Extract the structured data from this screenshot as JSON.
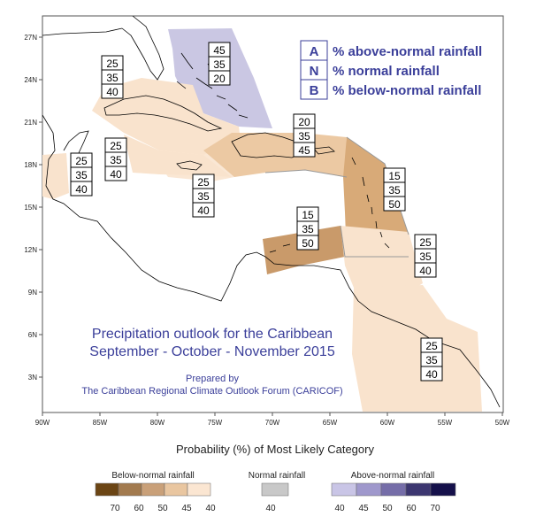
{
  "map": {
    "lon_ticks": [
      "90W",
      "85W",
      "80W",
      "75W",
      "70W",
      "65W",
      "60W",
      "55W",
      "50W"
    ],
    "lat_ticks": [
      "27N",
      "24N",
      "21N",
      "18N",
      "15N",
      "12N",
      "9N",
      "6N",
      "3N"
    ]
  },
  "key": {
    "rows": [
      {
        "letter": "A",
        "label": "% above-normal rainfall"
      },
      {
        "letter": "N",
        "label": "% normal rainfall"
      },
      {
        "letter": "B",
        "label": "% below-normal rainfall"
      }
    ]
  },
  "regions": [
    {
      "id": "bahamas",
      "values": [
        "45",
        "35",
        "20"
      ],
      "fill": "#c7c4e2"
    },
    {
      "id": "cuba",
      "values": [
        "25",
        "35",
        "40"
      ],
      "fill": "#f9e3cd"
    },
    {
      "id": "belize",
      "values": [
        "25",
        "35",
        "40"
      ],
      "fill": "#f9e3cd"
    },
    {
      "id": "cayman",
      "values": [
        "25",
        "35",
        "40"
      ],
      "fill": "#f9e3cd"
    },
    {
      "id": "jamaica",
      "values": [
        "25",
        "35",
        "40"
      ],
      "fill": "#f9e3cd"
    },
    {
      "id": "hispaniola",
      "values": [
        "20",
        "35",
        "45"
      ],
      "fill": "#ecc9a3"
    },
    {
      "id": "lesser-antilles",
      "values": [
        "15",
        "35",
        "50"
      ],
      "fill": "#d8aa78"
    },
    {
      "id": "abc-islands",
      "values": [
        "15",
        "35",
        "50"
      ],
      "fill": "#d8aa78"
    },
    {
      "id": "trinidad",
      "values": [
        "25",
        "35",
        "40"
      ],
      "fill": "#f9e3cd"
    },
    {
      "id": "guianas",
      "values": [
        "25",
        "35",
        "40"
      ],
      "fill": "#f9e3cd"
    }
  ],
  "title": {
    "line1": "Precipitation outlook for the Caribbean",
    "line2": "September - October - November 2015",
    "prepared": "Prepared by",
    "org": "The Caribbean Regional Climate Outlook Forum (CARICOF)"
  },
  "legend": {
    "title": "Probability (%) of Most Likely Category",
    "below": {
      "label": "Below-normal rainfall",
      "values": [
        "70",
        "60",
        "50",
        "45",
        "40"
      ],
      "colors": [
        "#6b4514",
        "#a27a4e",
        "#c9a079",
        "#e9c6a0",
        "#fbe6d2"
      ]
    },
    "normal": {
      "label": "Normal rainfall",
      "values": [
        "40"
      ],
      "colors": [
        "#c8c8c8"
      ]
    },
    "above": {
      "label": "Above-normal rainfall",
      "values": [
        "40",
        "45",
        "50",
        "60",
        "70"
      ],
      "colors": [
        "#c9c5e6",
        "#9f98cc",
        "#756da8",
        "#3c3670",
        "#15104a"
      ]
    }
  }
}
